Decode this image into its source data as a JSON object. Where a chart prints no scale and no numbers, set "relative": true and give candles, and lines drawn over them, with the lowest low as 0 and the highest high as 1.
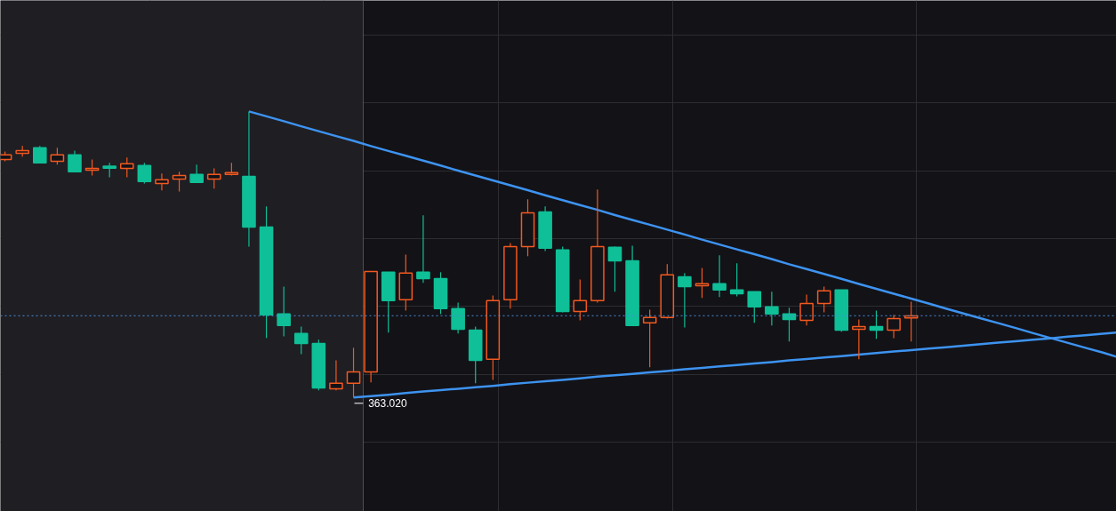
{
  "chart_data": {
    "type": "candlestick",
    "relative": true,
    "grid": true,
    "categories": [
      null,
      null,
      null,
      null,
      null,
      null,
      null,
      null,
      null,
      null,
      null,
      null,
      null,
      null,
      null,
      null,
      null,
      null,
      null,
      null,
      null,
      null,
      null,
      null,
      null,
      null,
      null,
      null,
      null,
      null,
      null,
      null,
      null,
      null,
      null,
      null,
      null,
      null,
      null,
      null,
      null,
      null,
      null,
      null,
      null,
      null,
      null,
      null,
      null,
      null,
      null,
      null,
      null,
      null,
      null,
      null,
      null,
      null,
      null,
      null,
      null,
      null,
      null,
      null,
      null
    ],
    "ohlc": [
      [
        0.832,
        0.86,
        0.826,
        0.848
      ],
      [
        0.854,
        0.879,
        0.842,
        0.863
      ],
      [
        0.873,
        0.879,
        0.82,
        0.82
      ],
      [
        0.826,
        0.873,
        0.814,
        0.848
      ],
      [
        0.848,
        0.863,
        0.789,
        0.789
      ],
      [
        0.795,
        0.832,
        0.776,
        0.801
      ],
      [
        0.807,
        0.82,
        0.77,
        0.804
      ],
      [
        0.801,
        0.839,
        0.77,
        0.817
      ],
      [
        0.811,
        0.82,
        0.748,
        0.755
      ],
      [
        0.748,
        0.783,
        0.724,
        0.761
      ],
      [
        0.764,
        0.789,
        0.72,
        0.776
      ],
      [
        0.78,
        0.814,
        0.752,
        0.752
      ],
      [
        0.764,
        0.801,
        0.73,
        0.78
      ],
      [
        0.78,
        0.82,
        0.776,
        0.786
      ],
      [
        0.773,
        1.0,
        0.528,
        0.596
      ],
      [
        0.596,
        0.668,
        0.208,
        0.289
      ],
      [
        0.292,
        0.388,
        0.214,
        0.252
      ],
      [
        0.224,
        0.248,
        0.152,
        0.189
      ],
      [
        0.189,
        0.202,
        0.025,
        0.034
      ],
      [
        0.031,
        0.13,
        0.025,
        0.05
      ],
      [
        0.05,
        0.174,
        0.0,
        0.09
      ],
      [
        0.09,
        0.441,
        0.053,
        0.441
      ],
      [
        0.438,
        0.438,
        0.227,
        0.339
      ],
      [
        0.342,
        0.5,
        0.304,
        0.435
      ],
      [
        0.438,
        0.637,
        0.401,
        0.416
      ],
      [
        0.416,
        0.438,
        0.292,
        0.311
      ],
      [
        0.311,
        0.332,
        0.224,
        0.239
      ],
      [
        0.236,
        0.248,
        0.05,
        0.13
      ],
      [
        0.134,
        0.357,
        0.062,
        0.339
      ],
      [
        0.342,
        0.54,
        0.311,
        0.528
      ],
      [
        0.528,
        0.693,
        0.494,
        0.646
      ],
      [
        0.649,
        0.668,
        0.512,
        0.522
      ],
      [
        0.516,
        0.528,
        0.298,
        0.301
      ],
      [
        0.301,
        0.413,
        0.27,
        0.339
      ],
      [
        0.339,
        0.727,
        0.332,
        0.528
      ],
      [
        0.525,
        0.528,
        0.37,
        0.478
      ],
      [
        0.478,
        0.531,
        0.252,
        0.252
      ],
      [
        0.261,
        0.307,
        0.106,
        0.28
      ],
      [
        0.28,
        0.466,
        0.276,
        0.429
      ],
      [
        0.422,
        0.435,
        0.245,
        0.388
      ],
      [
        0.391,
        0.453,
        0.348,
        0.398
      ],
      [
        0.398,
        0.497,
        0.351,
        0.376
      ],
      [
        0.376,
        0.469,
        0.354,
        0.363
      ],
      [
        0.37,
        0.37,
        0.261,
        0.317
      ],
      [
        0.317,
        0.37,
        0.252,
        0.292
      ],
      [
        0.292,
        0.314,
        0.196,
        0.273
      ],
      [
        0.27,
        0.36,
        0.252,
        0.329
      ],
      [
        0.329,
        0.388,
        0.298,
        0.373
      ],
      [
        0.376,
        0.376,
        0.23,
        0.236
      ],
      [
        0.239,
        0.273,
        0.134,
        0.248
      ],
      [
        0.248,
        0.304,
        0.205,
        0.236
      ],
      [
        0.236,
        0.289,
        0.208,
        0.276
      ],
      [
        0.28,
        0.335,
        0.196,
        0.283
      ],
      null,
      null,
      null,
      null,
      null,
      null,
      null,
      null,
      null,
      null,
      null,
      null
    ],
    "colors": [
      "#f2591f",
      "#f2591f",
      "#0fbf97",
      "#f2591f",
      "#0fbf97",
      "#f2591f",
      "#0fbf97",
      "#f2591f",
      "#0fbf97",
      "#f2591f",
      "#f2591f",
      "#0fbf97",
      "#f2591f",
      "#f2591f",
      "#0fbf97",
      "#0fbf97",
      "#0fbf97",
      "#0fbf97",
      "#0fbf97",
      "#f2591f",
      "#f2591f",
      "#f2591f",
      "#0fbf97",
      "#f2591f",
      "#0fbf97",
      "#0fbf97",
      "#0fbf97",
      "#0fbf97",
      "#f2591f",
      "#f2591f",
      "#f2591f",
      "#0fbf97",
      "#0fbf97",
      "#f2591f",
      "#f2591f",
      "#0fbf97",
      "#0fbf97",
      "#f2591f",
      "#f2591f",
      "#0fbf97",
      "#f2591f",
      "#0fbf97",
      "#0fbf97",
      "#0fbf97",
      "#0fbf97",
      "#0fbf97",
      "#f2591f",
      "#f2591f",
      "#0fbf97",
      "#f2591f",
      "#0fbf97",
      "#f2591f",
      "#f2591f",
      null,
      null,
      null,
      null,
      null,
      null,
      null,
      null,
      null,
      null,
      null,
      null
    ],
    "series": [
      {
        "type": "line",
        "color": "#3d93f0",
        "values": [
          null,
          null,
          null,
          null,
          null,
          null,
          null,
          null,
          null,
          null,
          null,
          null,
          null,
          null,
          1.0,
          0.983,
          0.966,
          0.948,
          0.931,
          0.914,
          0.897,
          0.879,
          0.862,
          0.845,
          0.828,
          0.811,
          0.793,
          0.776,
          0.759,
          0.742,
          0.725,
          0.707,
          0.69,
          0.673,
          0.656,
          0.638,
          0.621,
          0.604,
          0.587,
          0.57,
          0.552,
          0.535,
          0.518,
          0.501,
          0.484,
          0.466,
          0.449,
          0.432,
          0.415,
          0.397,
          0.38,
          0.363,
          0.346,
          0.329,
          0.311,
          0.294,
          0.277,
          0.26,
          0.243,
          0.225,
          0.208,
          0.191,
          0.174,
          0.157,
          0.139
        ]
      },
      {
        "type": "line",
        "color": "#3d93f0",
        "values": [
          null,
          null,
          null,
          null,
          null,
          null,
          null,
          null,
          null,
          null,
          null,
          null,
          null,
          null,
          null,
          null,
          null,
          null,
          null,
          null,
          0.0,
          0.005,
          0.01,
          0.016,
          0.021,
          0.026,
          0.031,
          0.036,
          0.041,
          0.047,
          0.052,
          0.057,
          0.062,
          0.067,
          0.073,
          0.078,
          0.083,
          0.088,
          0.093,
          0.099,
          0.104,
          0.109,
          0.114,
          0.119,
          0.124,
          0.13,
          0.135,
          0.14,
          0.145,
          0.15,
          0.156,
          0.161,
          0.166,
          0.171,
          0.176,
          0.181,
          0.187,
          0.192,
          0.197,
          0.202,
          0.207,
          0.213,
          0.218,
          0.223,
          0.228
        ]
      }
    ],
    "ref_lines": [
      {
        "axis": "y",
        "value": 0.286,
        "color": "#4a90d9",
        "line_style": "dotted"
      }
    ],
    "annotations": [
      {
        "text": "363.020",
        "y": 0.0
      }
    ]
  }
}
